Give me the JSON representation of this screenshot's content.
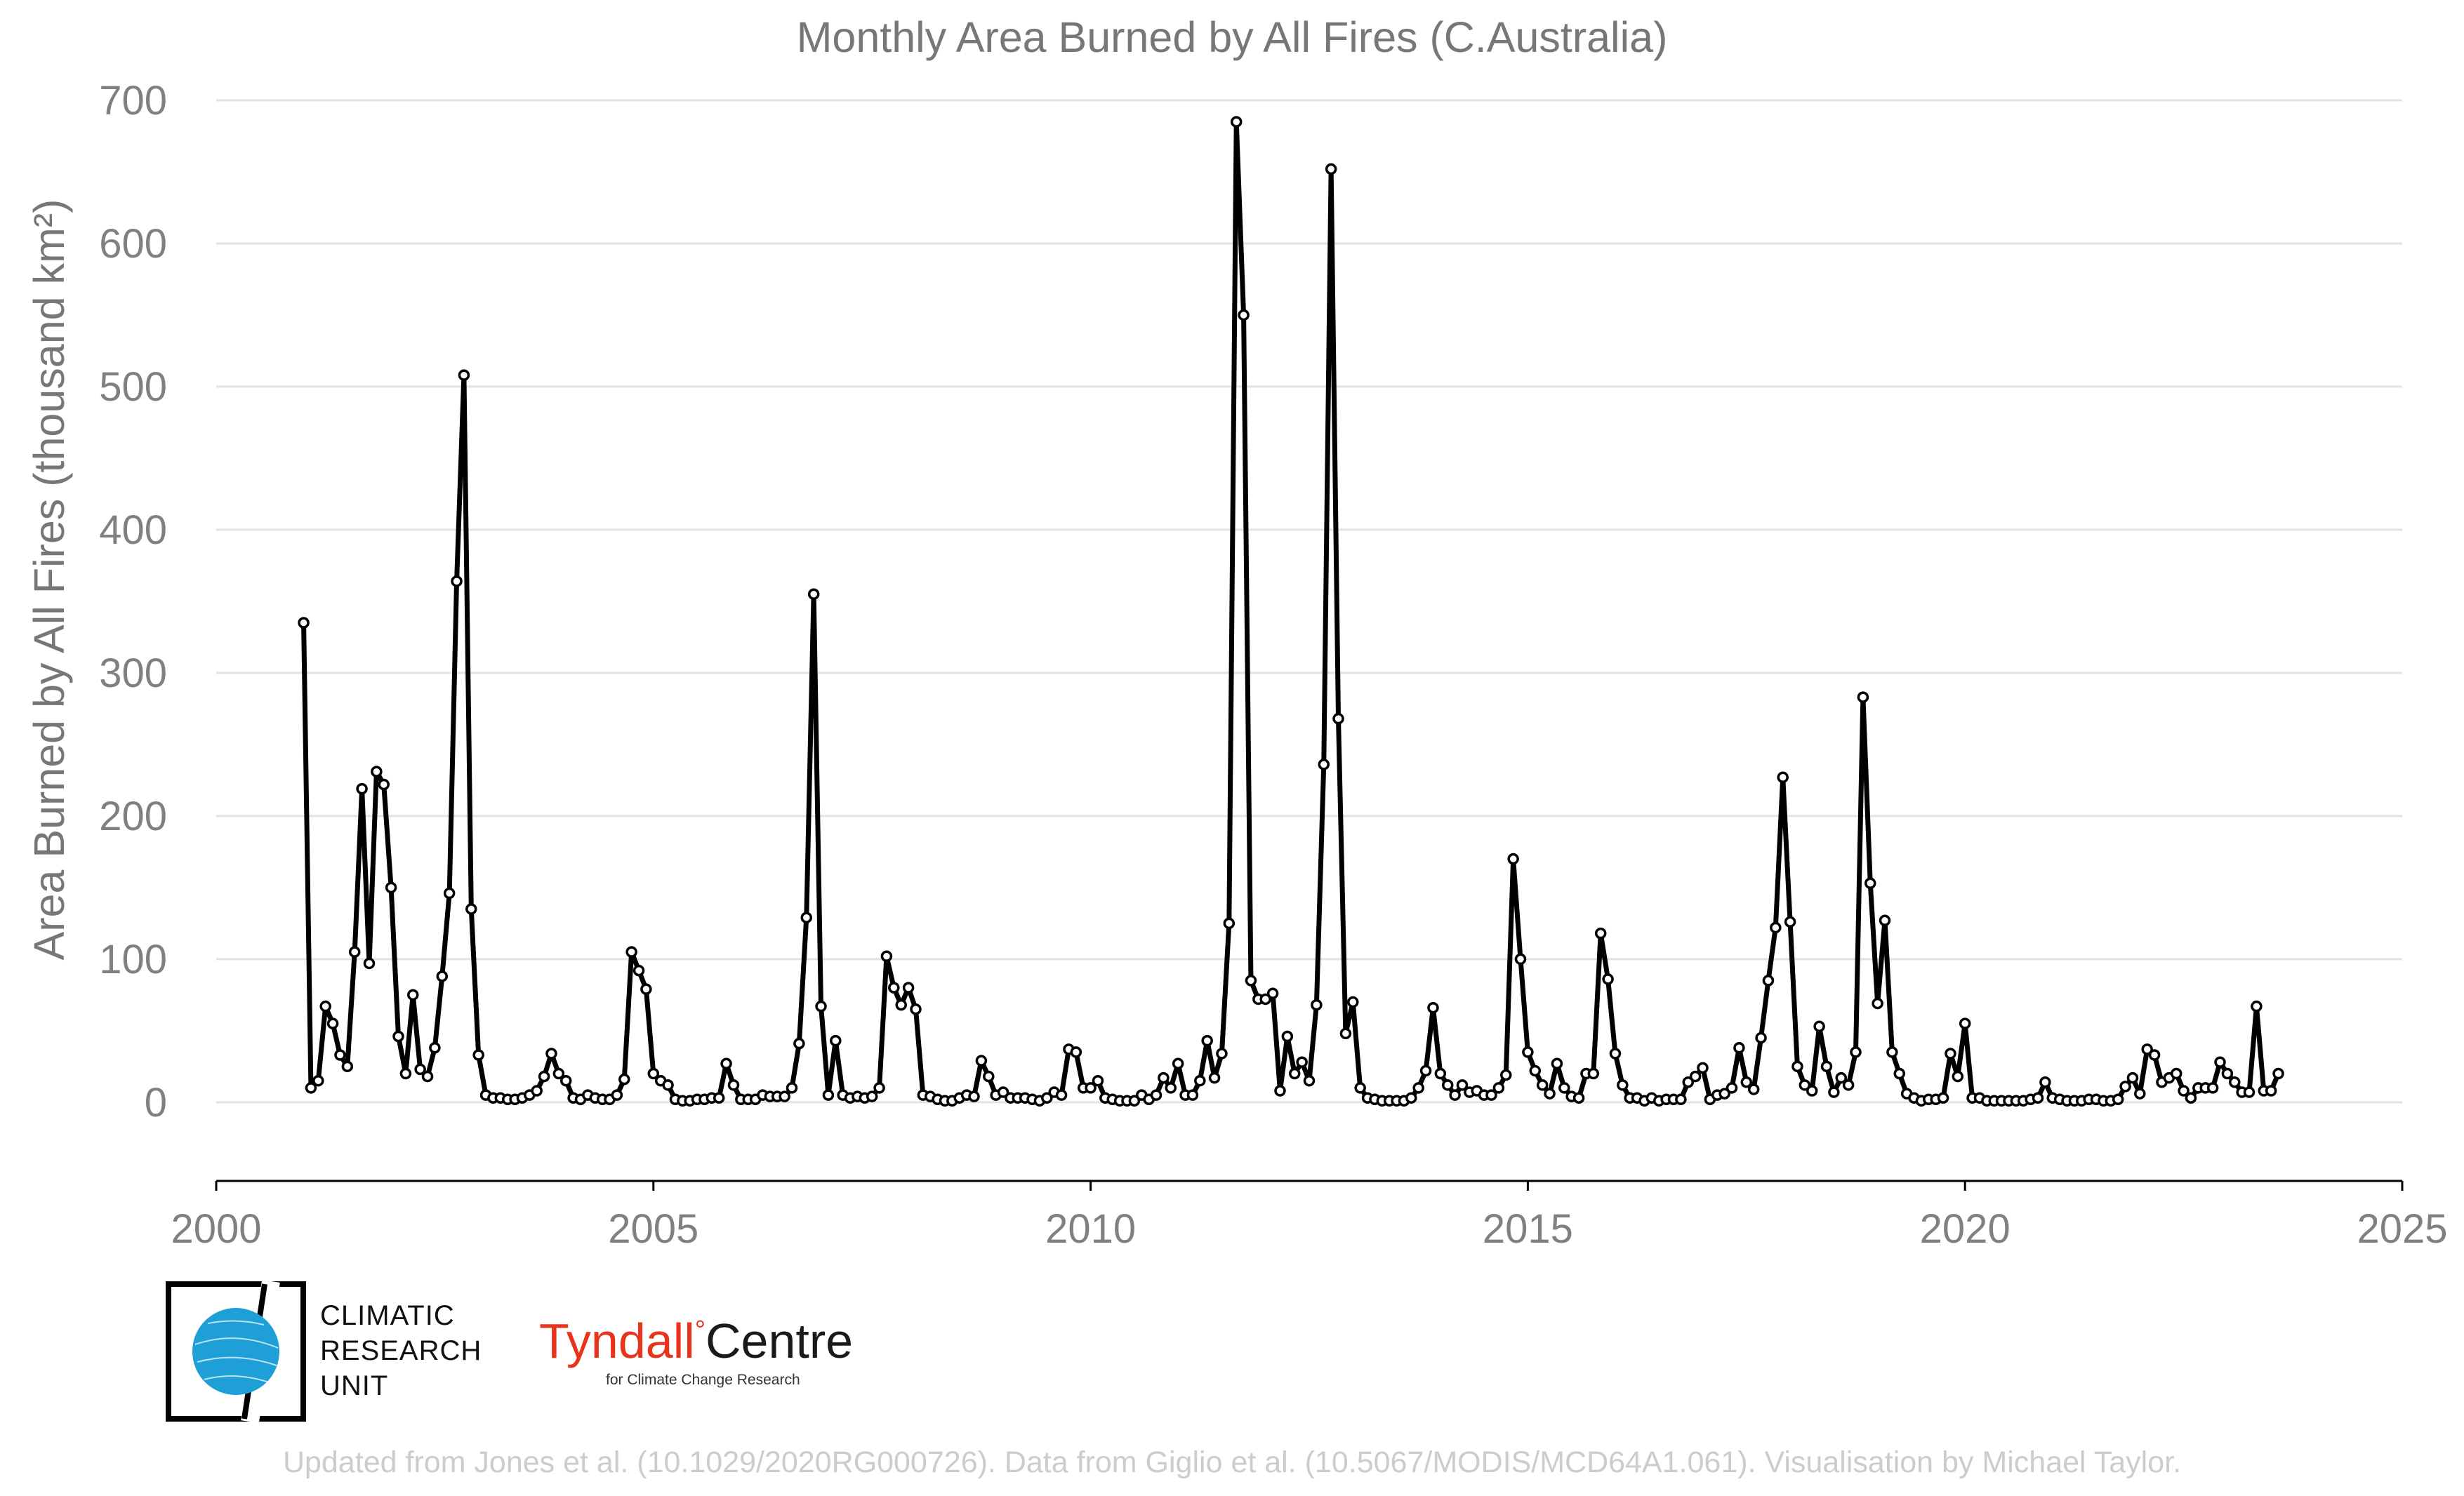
{
  "chart_data": {
    "type": "line",
    "title": "Monthly Area Burned by All Fires (C.Australia)",
    "ylabel": "Area Burned by All Fires (thousand km²)",
    "xlabel": "",
    "xlim": [
      2000,
      2025
    ],
    "ylim": [
      -55,
      700
    ],
    "x_ticks": [
      2000,
      2005,
      2010,
      2015,
      2020,
      2025
    ],
    "y_ticks": [
      0,
      100,
      200,
      300,
      400,
      500,
      600,
      700
    ],
    "grid": "horizontal",
    "line_color": "#000000",
    "marker_fill": "#ffffff",
    "series": [
      {
        "x_start": "2001-01",
        "frequency": "monthly",
        "values": [
          335,
          10,
          15,
          67,
          55,
          33,
          25,
          105,
          219,
          97,
          231,
          222,
          150,
          46,
          20,
          75,
          23,
          18,
          38,
          88,
          146,
          364,
          508,
          135,
          33,
          5,
          3,
          3,
          2,
          2,
          3,
          5,
          8,
          18,
          34,
          20,
          15,
          3,
          2,
          5,
          3,
          2,
          2,
          5,
          16,
          105,
          92,
          79,
          20,
          15,
          12,
          2,
          1,
          1,
          2,
          2,
          3,
          3,
          27,
          12,
          2,
          2,
          2,
          5,
          4,
          4,
          4,
          10,
          41,
          129,
          355,
          67,
          5,
          43,
          5,
          3,
          4,
          3,
          4,
          10,
          102,
          80,
          68,
          80,
          65,
          5,
          4,
          2,
          1,
          1,
          3,
          5,
          4,
          29,
          18,
          5,
          7,
          3,
          3,
          3,
          2,
          1,
          3,
          7,
          5,
          37,
          35,
          10,
          10,
          15,
          3,
          2,
          1,
          1,
          1,
          5,
          2,
          5,
          17,
          10,
          27,
          5,
          5,
          15,
          43,
          17,
          34,
          125,
          685,
          550,
          85,
          72,
          72,
          76,
          8,
          46,
          20,
          28,
          15,
          68,
          236,
          652,
          268,
          48,
          70,
          10,
          3,
          2,
          1,
          1,
          1,
          1,
          3,
          10,
          22,
          66,
          20,
          12,
          5,
          12,
          7,
          8,
          5,
          5,
          10,
          19,
          170,
          100,
          35,
          22,
          12,
          6,
          27,
          10,
          4,
          3,
          20,
          20,
          118,
          86,
          34,
          12,
          3,
          3,
          1,
          3,
          1,
          2,
          2,
          2,
          14,
          18,
          24,
          2,
          5,
          6,
          10,
          38,
          14,
          9,
          45,
          85,
          122,
          227,
          126,
          25,
          12,
          8,
          53,
          25,
          7,
          17,
          12,
          35,
          283,
          153,
          69,
          127,
          35,
          20,
          6,
          3,
          1,
          2,
          2,
          3,
          34,
          18,
          55,
          3,
          3,
          1,
          1,
          1,
          1,
          1,
          1,
          2,
          3,
          14,
          3,
          2,
          1,
          1,
          1,
          2,
          2,
          1,
          1,
          2,
          11,
          17,
          6,
          37,
          33,
          14,
          17,
          20,
          8,
          3,
          10,
          10,
          10,
          28,
          20,
          14,
          7,
          7,
          67,
          8,
          8,
          20
        ]
      }
    ]
  },
  "logos": {
    "cru_line1": "CLIMATIC",
    "cru_line2": "RESEARCH",
    "cru_line3": "UNIT",
    "tyndall_name": "Tyndall",
    "tyndall_degree": "°",
    "tyndall_centre": "Centre",
    "tyndall_sub": "for Climate Change Research"
  },
  "footer": "Updated from Jones et al. (10.1029/2020RG000726). Data from Giglio et al. (10.5067/MODIS/MCD64A1.061). Visualisation by Michael Taylor."
}
